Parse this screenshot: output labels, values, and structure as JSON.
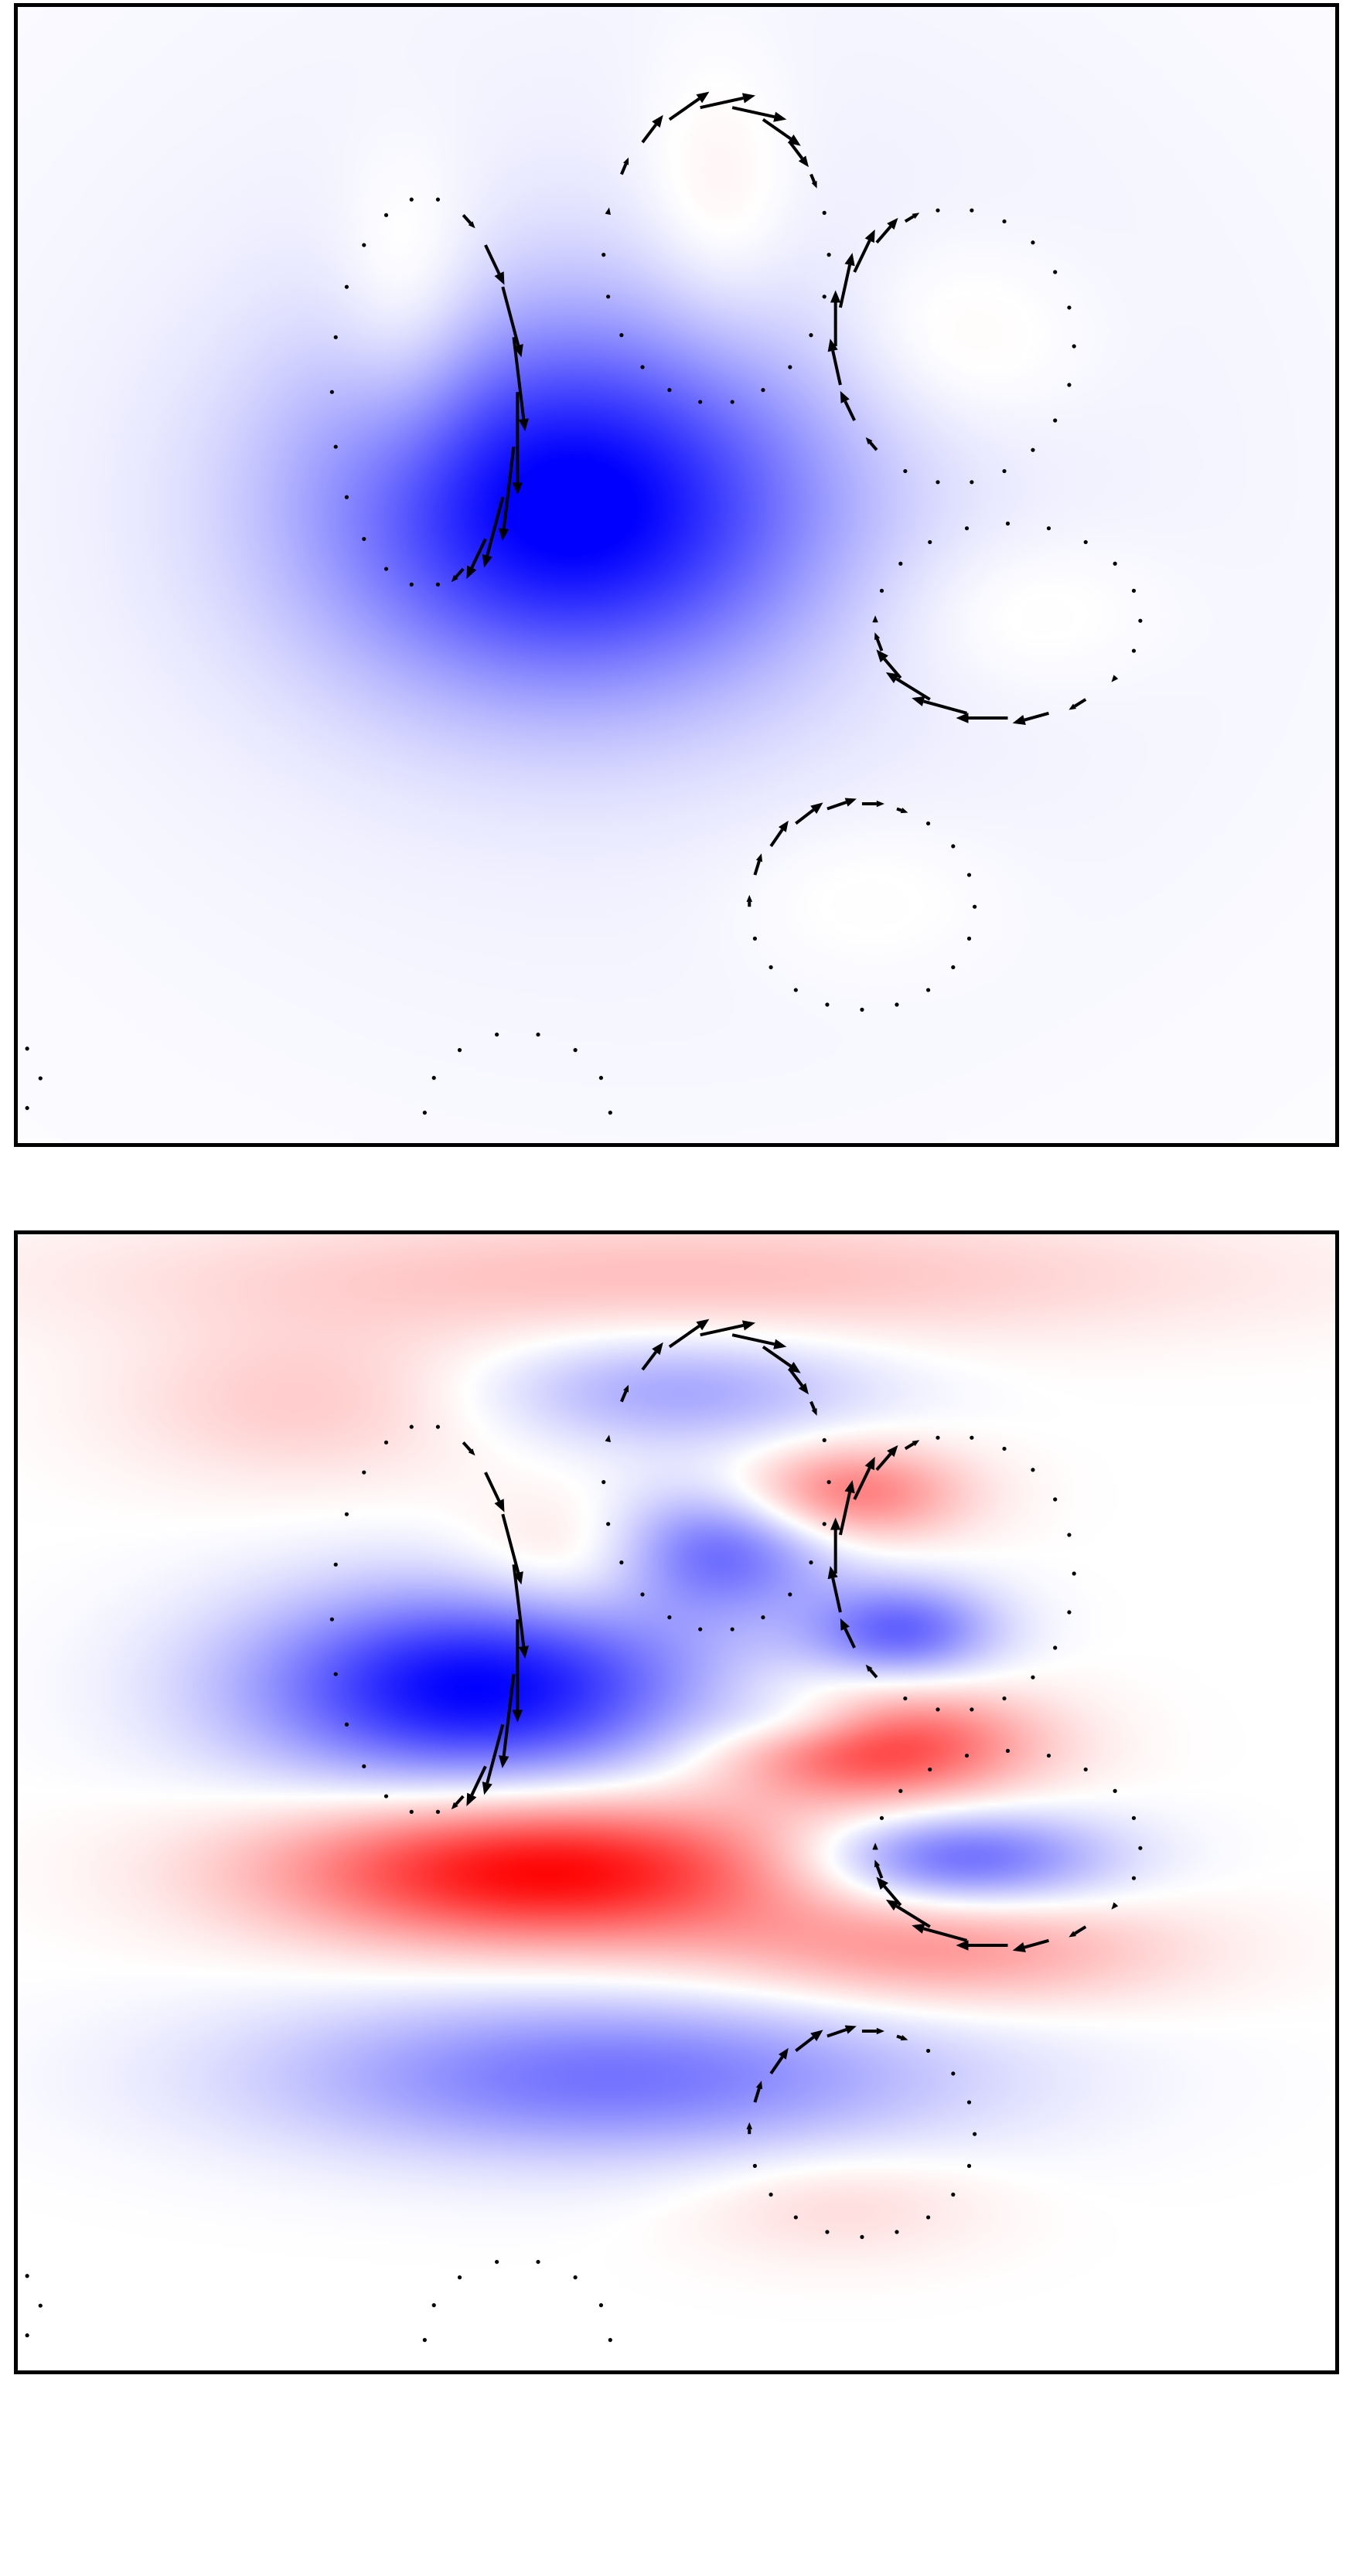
{
  "figure": {
    "panels": 2,
    "colormap": "bwr",
    "colors": {
      "negative": "#0000ff",
      "zero": "#ffffff",
      "positive": "#ff0000",
      "arrow": "#000000"
    }
  },
  "chart_data": [
    {
      "type": "heatmap",
      "panel": "top",
      "title": "",
      "xlabel": "",
      "ylabel": "",
      "xlim": [
        0,
        1
      ],
      "ylim": [
        0,
        1
      ],
      "grid": false,
      "legend": "none",
      "overlay": "quiver",
      "field_blobs": [
        {
          "cx": 0.42,
          "cy": 0.44,
          "sx": 0.13,
          "sy": 0.11,
          "amp": -1.0
        },
        {
          "cx": 0.48,
          "cy": 0.42,
          "sx": 0.4,
          "sy": 0.4,
          "amp": -0.07
        },
        {
          "cx": 0.3,
          "cy": 0.29,
          "sx": 0.04,
          "sy": 0.09,
          "amp": 0.18
        },
        {
          "cx": 0.53,
          "cy": 0.19,
          "sx": 0.04,
          "sy": 0.09,
          "amp": 0.12
        },
        {
          "cx": 0.7,
          "cy": 0.3,
          "sx": 0.07,
          "sy": 0.06,
          "amp": 0.1
        },
        {
          "cx": 0.74,
          "cy": 0.53,
          "sx": 0.08,
          "sy": 0.05,
          "amp": 0.08
        },
        {
          "cx": 0.64,
          "cy": 0.78,
          "sx": 0.07,
          "sy": 0.05,
          "amp": 0.05
        }
      ],
      "loops": [
        {
          "cx": 0.31,
          "cy": 0.34,
          "rx": 0.07,
          "ry": 0.17,
          "n": 22,
          "phase": 0.0,
          "scale": 0.09
        },
        {
          "cx": 0.53,
          "cy": 0.22,
          "rx": 0.085,
          "ry": 0.13,
          "n": 22,
          "phase": 1.6,
          "scale": 0.05
        },
        {
          "cx": 0.71,
          "cy": 0.3,
          "rx": 0.09,
          "ry": 0.12,
          "n": 22,
          "phase": 3.0,
          "scale": 0.05
        },
        {
          "cx": 0.75,
          "cy": 0.54,
          "rx": 0.1,
          "ry": 0.085,
          "n": 20,
          "phase": 4.4,
          "scale": 0.05
        },
        {
          "cx": 0.64,
          "cy": 0.79,
          "rx": 0.085,
          "ry": 0.09,
          "n": 20,
          "phase": 2.2,
          "scale": 0.03
        },
        {
          "cx": 0.38,
          "cy": 0.97,
          "rx": 0.07,
          "ry": 0.07,
          "n": 14,
          "phase": 0.5,
          "scale": 0.0
        },
        {
          "cx": 0.0,
          "cy": 0.94,
          "rx": 0.02,
          "ry": 0.03,
          "n": 6,
          "phase": 0.0,
          "scale": 0.0
        }
      ]
    },
    {
      "type": "heatmap",
      "panel": "bottom",
      "title": "",
      "xlabel": "",
      "ylabel": "",
      "xlim": [
        0,
        1
      ],
      "ylim": [
        0,
        1
      ],
      "grid": false,
      "legend": "none",
      "overlay": "quiver",
      "field_blobs": [
        {
          "cx": 0.4,
          "cy": 0.56,
          "sx": 0.14,
          "sy": 0.045,
          "amp": 1.0
        },
        {
          "cx": 0.65,
          "cy": 0.45,
          "sx": 0.08,
          "sy": 0.035,
          "amp": 0.8
        },
        {
          "cx": 0.7,
          "cy": 0.63,
          "sx": 0.12,
          "sy": 0.035,
          "amp": 0.4
        },
        {
          "cx": 0.5,
          "cy": 0.04,
          "sx": 0.3,
          "sy": 0.04,
          "amp": 0.25
        },
        {
          "cx": 0.22,
          "cy": 0.15,
          "sx": 0.1,
          "sy": 0.05,
          "amp": 0.2
        },
        {
          "cx": 0.63,
          "cy": 0.23,
          "sx": 0.06,
          "sy": 0.03,
          "amp": 0.55
        },
        {
          "cx": 0.43,
          "cy": 0.29,
          "sx": 0.06,
          "sy": 0.04,
          "amp": 0.25
        },
        {
          "cx": 0.62,
          "cy": 0.85,
          "sx": 0.08,
          "sy": 0.035,
          "amp": 0.15
        },
        {
          "cx": 0.35,
          "cy": 0.4,
          "sx": 0.12,
          "sy": 0.06,
          "amp": -1.0
        },
        {
          "cx": 0.71,
          "cy": 0.55,
          "sx": 0.08,
          "sy": 0.03,
          "amp": -0.65
        },
        {
          "cx": 0.5,
          "cy": 0.14,
          "sx": 0.1,
          "sy": 0.035,
          "amp": -0.35
        },
        {
          "cx": 0.53,
          "cy": 0.28,
          "sx": 0.06,
          "sy": 0.04,
          "amp": -0.6
        },
        {
          "cx": 0.67,
          "cy": 0.35,
          "sx": 0.05,
          "sy": 0.03,
          "amp": -0.6
        },
        {
          "cx": 0.45,
          "cy": 0.74,
          "sx": 0.18,
          "sy": 0.05,
          "amp": -0.55
        },
        {
          "cx": 0.6,
          "cy": 0.43,
          "sx": 0.05,
          "sy": 0.02,
          "amp": -0.3
        }
      ],
      "loops": [
        {
          "cx": 0.31,
          "cy": 0.34,
          "rx": 0.07,
          "ry": 0.17,
          "n": 22,
          "phase": 0.0,
          "scale": 0.09
        },
        {
          "cx": 0.53,
          "cy": 0.22,
          "rx": 0.085,
          "ry": 0.13,
          "n": 22,
          "phase": 1.6,
          "scale": 0.05
        },
        {
          "cx": 0.71,
          "cy": 0.3,
          "rx": 0.09,
          "ry": 0.12,
          "n": 22,
          "phase": 3.0,
          "scale": 0.05
        },
        {
          "cx": 0.75,
          "cy": 0.54,
          "rx": 0.1,
          "ry": 0.085,
          "n": 20,
          "phase": 4.4,
          "scale": 0.05
        },
        {
          "cx": 0.64,
          "cy": 0.79,
          "rx": 0.085,
          "ry": 0.09,
          "n": 20,
          "phase": 2.2,
          "scale": 0.03
        },
        {
          "cx": 0.38,
          "cy": 0.97,
          "rx": 0.07,
          "ry": 0.07,
          "n": 14,
          "phase": 0.5,
          "scale": 0.0
        },
        {
          "cx": 0.0,
          "cy": 0.94,
          "rx": 0.02,
          "ry": 0.03,
          "n": 6,
          "phase": 0.0,
          "scale": 0.0
        }
      ]
    }
  ]
}
